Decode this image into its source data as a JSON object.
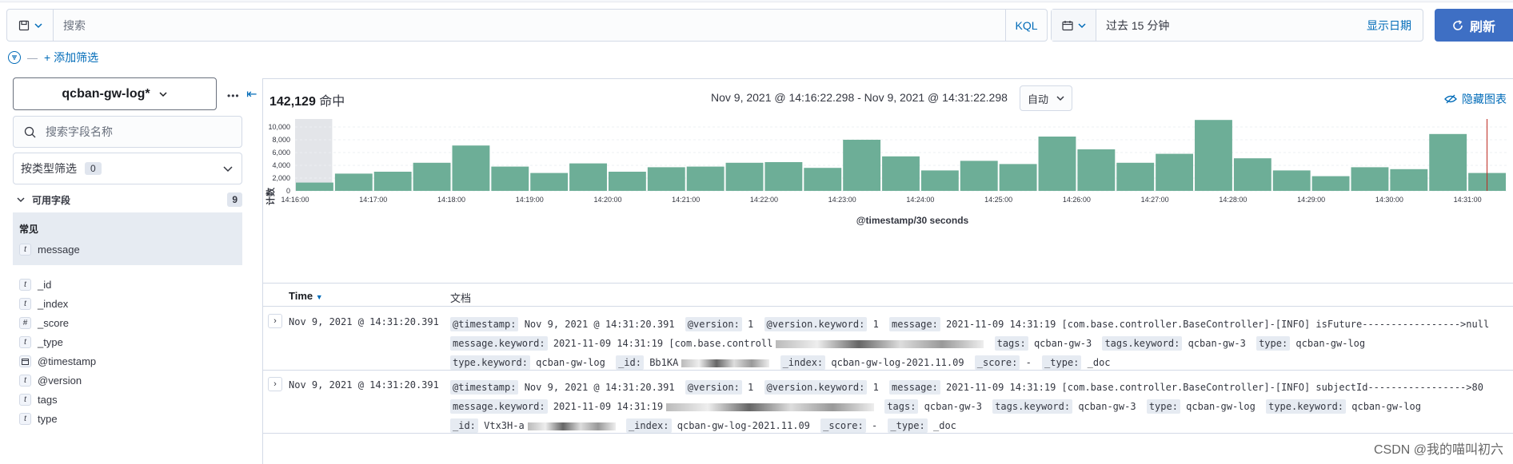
{
  "query_bar": {
    "placeholder": "搜索",
    "language": "KQL"
  },
  "date_picker": {
    "value": "过去 15 分钟",
    "show_dates": "显示日期"
  },
  "refresh_label": "刷新",
  "add_filter": "+ 添加筛选",
  "sidebar": {
    "index_pattern": "qcban-gw-log*",
    "search_placeholder": "搜索字段名称",
    "type_filter_label": "按类型筛选",
    "type_filter_count": "0",
    "available_label": "可用字段",
    "available_count": "9",
    "common_label": "常见",
    "common_fields": [
      {
        "type": "t",
        "name": "message"
      }
    ],
    "fields": [
      {
        "type": "t",
        "name": "_id"
      },
      {
        "type": "t",
        "name": "_index"
      },
      {
        "type": "#",
        "name": "_score"
      },
      {
        "type": "t",
        "name": "_type"
      },
      {
        "type": "date",
        "name": "@timestamp"
      },
      {
        "type": "t",
        "name": "@version"
      },
      {
        "type": "t",
        "name": "tags"
      },
      {
        "type": "t",
        "name": "type"
      }
    ]
  },
  "hits": {
    "count": "142,129",
    "label": "命中"
  },
  "time_range": "Nov 9, 2021 @ 14:16:22.298 - Nov 9, 2021 @ 14:31:22.298",
  "interval": "自动",
  "hide_chart": "隐藏图表",
  "chart_data": {
    "type": "bar",
    "xlabel": "@timestamp/30 seconds",
    "ylabel": "计数",
    "ylim": [
      0,
      11000
    ],
    "yticks": [
      "0",
      "2,000",
      "4,000",
      "6,000",
      "8,000",
      "10,000"
    ],
    "xticks": [
      "14:16:00",
      "14:17:00",
      "14:18:00",
      "14:19:00",
      "14:20:00",
      "14:21:00",
      "14:22:00",
      "14:23:00",
      "14:24:00",
      "14:25:00",
      "14:26:00",
      "14:27:00",
      "14:28:00",
      "14:29:00",
      "14:30:00",
      "14:31:00"
    ],
    "values": [
      1300,
      2700,
      3000,
      4400,
      7100,
      3800,
      2800,
      4300,
      3000,
      3700,
      3800,
      4400,
      4500,
      3600,
      8000,
      5400,
      3200,
      4700,
      4200,
      8500,
      6500,
      4400,
      5800,
      11100,
      5100,
      3200,
      2300,
      3700,
      3400,
      8900,
      2800
    ],
    "bar_color": "#6dae97"
  },
  "table": {
    "col_time": "Time",
    "col_doc": "文档",
    "rows": [
      {
        "time": "Nov 9, 2021 @ 14:31:20.391",
        "fields": [
          {
            "k": "@timestamp:",
            "v": "Nov 9, 2021 @ 14:31:20.391"
          },
          {
            "k": "@version:",
            "v": "1"
          },
          {
            "k": "@version.keyword:",
            "v": "1"
          },
          {
            "k": "message:",
            "v": "2021-11-09 14:31:19 [com.base.controller.BaseController]-[INFO] isFuture----------------->null"
          },
          {
            "k": "message.keyword:",
            "v": "2021-11-09 14:31:19 [com.base.controll"
          },
          {
            "k": "tags:",
            "v": "qcban-gw-3"
          },
          {
            "k": "tags.keyword:",
            "v": "qcban-gw-3"
          },
          {
            "k": "type:",
            "v": "qcban-gw-log"
          },
          {
            "k": "type.keyword:",
            "v": "qcban-gw-log"
          },
          {
            "k": "_id:",
            "v": "Bb1KA"
          },
          {
            "k": "_index:",
            "v": "qcban-gw-log-2021.11.09"
          },
          {
            "k": "_score:",
            "v": "-"
          },
          {
            "k": "_type:",
            "v": "_doc"
          }
        ]
      },
      {
        "time": "Nov 9, 2021 @ 14:31:20.391",
        "fields": [
          {
            "k": "@timestamp:",
            "v": "Nov 9, 2021 @ 14:31:20.391"
          },
          {
            "k": "@version:",
            "v": "1"
          },
          {
            "k": "@version.keyword:",
            "v": "1"
          },
          {
            "k": "message:",
            "v": "2021-11-09 14:31:19 [com.base.controller.BaseController]-[INFO] subjectId----------------->80"
          },
          {
            "k": "message.keyword:",
            "v": "2021-11-09 14:31:19"
          },
          {
            "k": "tags:",
            "v": "qcban-gw-3"
          },
          {
            "k": "tags.keyword:",
            "v": "qcban-gw-3"
          },
          {
            "k": "type:",
            "v": "qcban-gw-log"
          },
          {
            "k": "type.keyword:",
            "v": "qcban-gw-log"
          },
          {
            "k": "_id:",
            "v": "Vtx3H-a"
          },
          {
            "k": "_index:",
            "v": "qcban-gw-log-2021.11.09"
          },
          {
            "k": "_score:",
            "v": "-"
          },
          {
            "k": "_type:",
            "v": "_doc"
          }
        ]
      }
    ]
  },
  "watermark": "CSDN @我的喵叫初六"
}
